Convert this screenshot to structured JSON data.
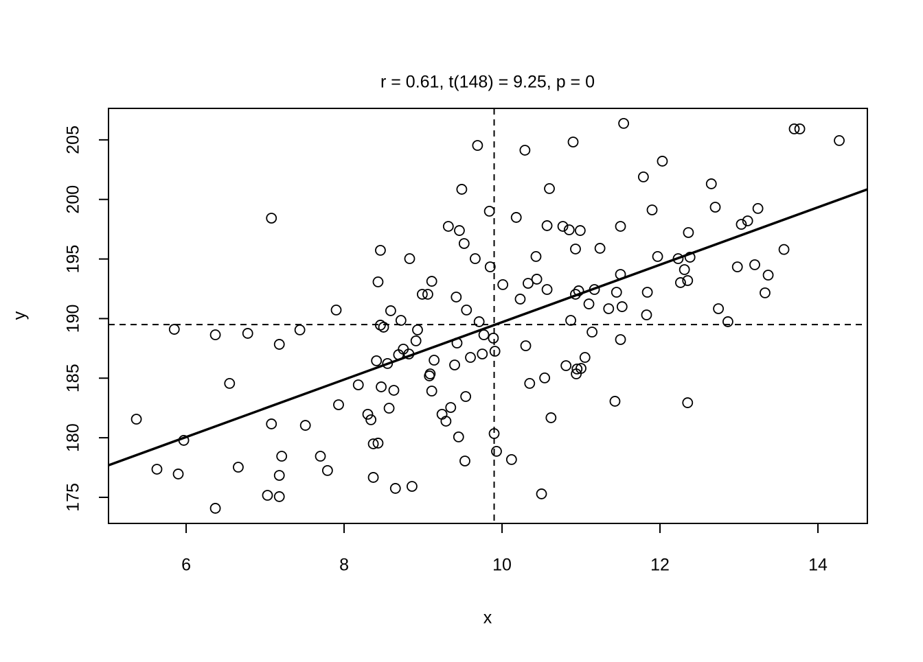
{
  "chart_data": {
    "type": "scatter",
    "title": "r = 0.61, t(148) = 9.25, p = 0",
    "x_label": "x",
    "y_label": "y",
    "x": [
      5.37,
      5.63,
      5.85,
      5.9,
      5.97,
      6.37,
      6.37,
      6.55,
      6.66,
      6.78,
      7.08,
      7.08,
      7.03,
      7.18,
      7.18,
      7.18,
      7.21,
      7.44,
      7.51,
      7.7,
      7.79,
      7.9,
      7.93,
      8.18,
      8.3,
      8.34,
      8.37,
      8.37,
      8.41,
      8.43,
      8.43,
      8.46,
      8.46,
      8.47,
      8.5,
      8.55,
      8.57,
      8.59,
      8.63,
      8.65,
      8.69,
      8.72,
      8.75,
      8.82,
      8.83,
      8.86,
      8.91,
      8.93,
      8.99,
      9.06,
      9.08,
      9.09,
      9.11,
      9.11,
      9.14,
      9.24,
      9.29,
      9.32,
      9.35,
      9.4,
      9.42,
      9.43,
      9.45,
      9.46,
      9.49,
      9.52,
      9.53,
      9.54,
      9.55,
      9.6,
      9.66,
      9.69,
      9.71,
      9.75,
      9.77,
      9.84,
      9.85,
      9.89,
      9.9,
      9.91,
      9.93,
      10.01,
      10.12,
      10.18,
      10.23,
      10.29,
      10.3,
      10.33,
      10.35,
      10.43,
      10.44,
      10.5,
      10.54,
      10.57,
      10.57,
      10.6,
      10.62,
      10.77,
      10.81,
      10.85,
      10.87,
      10.9,
      10.93,
      10.93,
      10.94,
      10.95,
      10.97,
      10.99,
      11.0,
      11.05,
      11.1,
      11.14,
      11.17,
      11.24,
      11.35,
      11.43,
      11.45,
      11.5,
      11.5,
      11.5,
      11.52,
      11.54,
      11.79,
      11.83,
      11.84,
      11.9,
      11.97,
      12.03,
      12.23,
      12.26,
      12.31,
      12.35,
      12.35,
      12.36,
      12.38,
      12.65,
      12.7,
      12.74,
      12.86,
      12.98,
      13.03,
      13.11,
      13.2,
      13.24,
      13.33,
      13.37,
      13.57,
      13.7,
      13.77,
      14.27
    ],
    "values": [
      181.56,
      177.36,
      189.1,
      176.96,
      179.78,
      188.64,
      174.08,
      184.56,
      177.53,
      188.76,
      198.43,
      181.16,
      175.17,
      187.84,
      176.84,
      175.06,
      178.45,
      189.05,
      181.04,
      178.45,
      177.25,
      190.72,
      182.77,
      184.44,
      181.97,
      181.51,
      179.49,
      176.67,
      186.46,
      193.08,
      179.55,
      195.73,
      189.45,
      184.27,
      189.28,
      186.23,
      182.48,
      190.66,
      183.98,
      175.75,
      186.97,
      189.85,
      187.44,
      187.03,
      195.03,
      175.92,
      188.13,
      189.05,
      192.04,
      192.04,
      185.19,
      185.36,
      193.13,
      183.92,
      186.51,
      181.97,
      181.39,
      197.74,
      182.54,
      186.11,
      191.81,
      187.95,
      180.07,
      197.39,
      200.85,
      196.3,
      178.05,
      183.46,
      190.72,
      186.74,
      195.03,
      204.53,
      189.74,
      187.03,
      188.64,
      199.01,
      194.34,
      188.36,
      180.35,
      187.26,
      178.86,
      192.85,
      178.17,
      198.49,
      191.64,
      204.13,
      187.72,
      192.96,
      184.56,
      195.21,
      193.31,
      175.29,
      185.02,
      197.8,
      192.44,
      200.91,
      181.68,
      197.74,
      186.05,
      197.45,
      189.85,
      204.82,
      195.84,
      192.04,
      185.36,
      185.77,
      192.33,
      197.39,
      185.82,
      186.74,
      191.23,
      188.87,
      192.44,
      195.9,
      190.83,
      183.06,
      192.21,
      193.71,
      197.74,
      188.24,
      191.0,
      206.38,
      201.89,
      190.31,
      192.21,
      199.12,
      195.21,
      203.21,
      195.03,
      193.02,
      194.11,
      193.19,
      182.94,
      197.22,
      195.15,
      201.31,
      199.35,
      190.83,
      189.74,
      194.34,
      197.91,
      198.2,
      194.52,
      199.24,
      192.16,
      193.65,
      195.8,
      205.92,
      205.92,
      204.94
    ],
    "regression_line": {
      "intercept": 165.6,
      "slope": 2.41
    },
    "mean_x": 9.9,
    "mean_y": 189.5,
    "xlim": [
      5.017,
      14.626
    ],
    "ylim": [
      172.81,
      207.64
    ],
    "xticks": [
      6,
      8,
      10,
      12,
      14
    ],
    "yticks": [
      175,
      180,
      185,
      190,
      195,
      200,
      205
    ],
    "color": "#000000"
  }
}
